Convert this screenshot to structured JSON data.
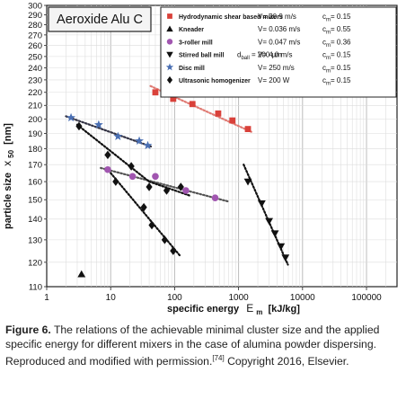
{
  "chart_data": {
    "type": "scatter",
    "title": "Aeroxide Alu C",
    "xlabel": {
      "main": "specific energy",
      "sym": "E",
      "sub": "m",
      "unit": "[kJ/kg]"
    },
    "ylabel": {
      "main": "particle size",
      "sym": "x",
      "sub": "50",
      "unit": "[nm]"
    },
    "xscale": "log",
    "yscale": "log",
    "xlim": [
      1,
      300000
    ],
    "ylim": [
      110,
      300
    ],
    "grid": true,
    "legend_position": "top-right",
    "x_ticks": [
      "1",
      "10",
      "100",
      "1000",
      "10000",
      "100000"
    ],
    "y_ticks": [
      "110",
      "120",
      "130",
      "140",
      "150",
      "160",
      "170",
      "180",
      "190",
      "200",
      "210",
      "220",
      "230",
      "240",
      "250",
      "260",
      "270",
      "280",
      "290",
      "300"
    ],
    "series": [
      {
        "name": "Hydrodynamic shear based mixers",
        "marker": "square",
        "color": "#d9413a",
        "line_color": "#e07b74",
        "params": [
          "V= 20.9 m/s",
          "c",
          "m",
          "= 0.15"
        ],
        "points": [
          [
            50,
            220
          ],
          [
            95,
            215
          ],
          [
            190,
            211
          ],
          [
            480,
            204
          ],
          [
            800,
            199
          ],
          [
            1400,
            193
          ]
        ],
        "trend": [
          [
            42,
            225
          ],
          [
            1600,
            191
          ]
        ]
      },
      {
        "name": "Kneader",
        "marker": "triangle",
        "color": "#111111",
        "line_color": "#333333",
        "params": [
          "V= 0.036 m/s",
          "c",
          "m",
          "= 0.55"
        ],
        "points": [
          [
            3.5,
            115
          ]
        ],
        "trend": null
      },
      {
        "name": "3-roller mill",
        "marker": "circle",
        "color": "#a156b0",
        "line_color": "#555555",
        "params": [
          "V= 0.047 m/s",
          "c",
          "m",
          "= 0.36"
        ],
        "points": [
          [
            9,
            167
          ],
          [
            22,
            163
          ],
          [
            50,
            163
          ],
          [
            150,
            155
          ],
          [
            430,
            151
          ]
        ],
        "trend": [
          [
            7,
            168
          ],
          [
            700,
            149
          ]
        ]
      },
      {
        "name": "Stirred ball mill",
        "marker": "triangle-down",
        "color": "#111111",
        "line_color": "#111111",
        "dball": [
          "d",
          "ball",
          " = 200 µm"
        ],
        "params": [
          "V= 4.0 m/s",
          "c",
          "m",
          "= 0.15"
        ],
        "points": [
          [
            1400,
            160
          ],
          [
            2300,
            148
          ],
          [
            3000,
            139
          ],
          [
            3700,
            133
          ],
          [
            4600,
            127
          ],
          [
            5400,
            122
          ]
        ],
        "trend": [
          [
            1200,
            170
          ],
          [
            5900,
            119
          ]
        ]
      },
      {
        "name": "Disc mill",
        "marker": "star",
        "color": "#4a6fb3",
        "line_color": "#333344",
        "params": [
          "V= 250 m/s",
          "c",
          "m",
          "= 0.15"
        ],
        "points": [
          [
            2.4,
            201
          ],
          [
            6.5,
            196
          ],
          [
            13,
            188
          ],
          [
            28,
            185
          ],
          [
            38,
            182
          ]
        ],
        "trend": [
          [
            2.0,
            202
          ],
          [
            45,
            181
          ]
        ]
      },
      {
        "name": "Ultrasonic homogenizer",
        "marker": "diamond",
        "color": "#111111",
        "line_color": "#111111",
        "params": [
          "V= 200 W",
          "c",
          "m",
          "= 0.15"
        ],
        "points": [
          [
            3.2,
            195
          ],
          [
            9,
            176
          ],
          [
            21,
            169
          ],
          [
            40,
            157
          ],
          [
            75,
            155
          ],
          [
            125,
            157
          ],
          [
            12,
            160
          ],
          [
            33,
            146
          ],
          [
            44,
            137
          ],
          [
            70,
            130
          ],
          [
            95,
            125
          ]
        ],
        "trend_segments": [
          [
            [
              3.0,
              196
            ],
            [
              40,
              160
            ]
          ],
          [
            [
              40,
              160
            ],
            [
              180,
              152
            ]
          ],
          [
            [
              10,
              165
            ],
            [
              120,
              123
            ]
          ]
        ]
      }
    ]
  },
  "caption": {
    "label": "Figure 6.",
    "text": " The relations of the achievable minimal cluster size and the applied specific energy for different mixers in the case of alumina powder dispersing. Reproduced and modified with permission.",
    "ref": "[74]",
    "tail": " Copyright 2016, Elsevier."
  }
}
